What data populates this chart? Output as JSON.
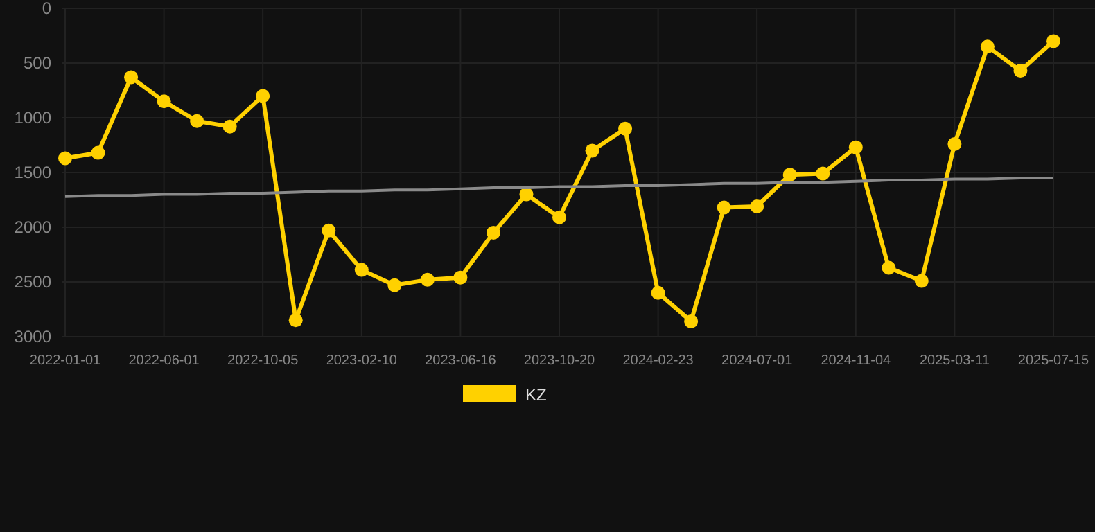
{
  "chart_data": {
    "type": "line",
    "categories": [
      "2022-01-01",
      null,
      null,
      "2022-06-01",
      null,
      null,
      "2022-10-05",
      null,
      null,
      "2023-02-10",
      null,
      null,
      "2023-06-16",
      null,
      null,
      "2023-10-20",
      null,
      null,
      "2024-02-23",
      null,
      null,
      "2024-07-01",
      null,
      null,
      "2024-11-04",
      null,
      null,
      "2025-03-11",
      null,
      null,
      "2025-07-15"
    ],
    "series": [
      {
        "name": "KZ",
        "color": "#ffd100",
        "marker": "circle",
        "values": [
          1370,
          1320,
          630,
          850,
          1030,
          1080,
          800,
          2850,
          2030,
          2390,
          2530,
          2480,
          2460,
          2050,
          1700,
          1910,
          1300,
          1100,
          2600,
          2860,
          1820,
          1810,
          1520,
          1510,
          1270,
          2370,
          2490,
          1240,
          350,
          570,
          300
        ]
      },
      {
        "color": "#8a8a8a",
        "marker": "none",
        "values": [
          1720,
          1710,
          1710,
          1700,
          1700,
          1690,
          1690,
          1680,
          1670,
          1670,
          1660,
          1660,
          1650,
          1640,
          1640,
          1630,
          1630,
          1620,
          1620,
          1610,
          1600,
          1600,
          1590,
          1590,
          1580,
          1570,
          1570,
          1560,
          1560,
          1550,
          1550
        ]
      }
    ],
    "ylim": [
      3000,
      0
    ],
    "yticks": [
      0,
      500,
      1000,
      1500,
      2000,
      2500,
      3000
    ],
    "grid": true,
    "legend": "bottom"
  }
}
